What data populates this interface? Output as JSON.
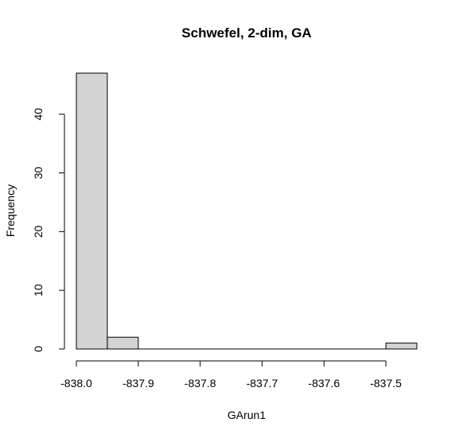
{
  "chart_data": {
    "type": "bar",
    "title": "Schwefel, 2-dim, GA",
    "xlabel": "GArun1",
    "ylabel": "Frequency",
    "bins": [
      {
        "x0": -838.0,
        "x1": -837.95,
        "count": 47
      },
      {
        "x0": -837.95,
        "x1": -837.9,
        "count": 2
      },
      {
        "x0": -837.9,
        "x1": -837.85,
        "count": 0
      },
      {
        "x0": -837.85,
        "x1": -837.8,
        "count": 0
      },
      {
        "x0": -837.8,
        "x1": -837.75,
        "count": 0
      },
      {
        "x0": -837.75,
        "x1": -837.7,
        "count": 0
      },
      {
        "x0": -837.7,
        "x1": -837.65,
        "count": 0
      },
      {
        "x0": -837.65,
        "x1": -837.6,
        "count": 0
      },
      {
        "x0": -837.6,
        "x1": -837.55,
        "count": 0
      },
      {
        "x0": -837.55,
        "x1": -837.5,
        "count": 0
      },
      {
        "x0": -837.5,
        "x1": -837.45,
        "count": 1
      }
    ],
    "xticks": [
      {
        "value": -838.0,
        "label": "-838.0"
      },
      {
        "value": -837.9,
        "label": "-837.9"
      },
      {
        "value": -837.8,
        "label": "-837.8"
      },
      {
        "value": -837.7,
        "label": "-837.7"
      },
      {
        "value": -837.6,
        "label": "-837.6"
      },
      {
        "value": -837.5,
        "label": "-837.5"
      }
    ],
    "yticks": [
      {
        "value": 0,
        "label": "0"
      },
      {
        "value": 10,
        "label": "10"
      },
      {
        "value": 20,
        "label": "20"
      },
      {
        "value": 30,
        "label": "30"
      },
      {
        "value": 40,
        "label": "40"
      }
    ],
    "xlim": [
      -838.0,
      -837.45
    ],
    "ylim": [
      0,
      47
    ],
    "grid": false,
    "colors": {
      "bar_fill": "#d3d3d3",
      "bar_stroke": "#000000"
    }
  }
}
